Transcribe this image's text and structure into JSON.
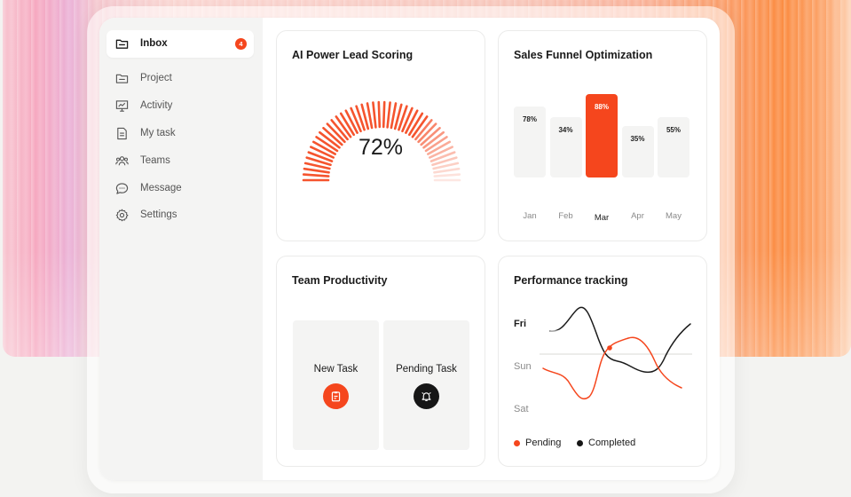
{
  "sidebar": {
    "items": [
      {
        "label": "Inbox",
        "icon": "folder-icon",
        "active": true,
        "badge": "4"
      },
      {
        "label": "Project",
        "icon": "folder-icon"
      },
      {
        "label": "Activity",
        "icon": "presentation-chart-icon"
      },
      {
        "label": "My task",
        "icon": "document-icon"
      },
      {
        "label": "Teams",
        "icon": "users-icon"
      },
      {
        "label": "Message",
        "icon": "chat-bubble-icon"
      },
      {
        "label": "Settings",
        "icon": "gear-icon"
      }
    ]
  },
  "lead_scoring": {
    "title": "AI Power Lead Scoring",
    "value_label": "72%",
    "value": 0.72
  },
  "sales_funnel": {
    "title": "Sales Funnel Optimization",
    "chart_data": {
      "type": "bar",
      "categories": [
        "Jan",
        "Feb",
        "Mar",
        "Apr",
        "May"
      ],
      "value_labels": [
        "78%",
        "34%",
        "88%",
        "35%",
        "55%"
      ],
      "highlight": "Mar",
      "highlight_color": "#f5461d"
    }
  },
  "team_productivity": {
    "title": "Team Productivity",
    "tasks": [
      {
        "label": "New Task",
        "icon": "clipboard-icon",
        "color": "#f5461d"
      },
      {
        "label": "Pending Task",
        "icon": "bell-icon",
        "color": "#161616"
      }
    ]
  },
  "performance": {
    "title": "Performance tracking",
    "chart_data": {
      "type": "line",
      "y_categories": [
        "Fri",
        "Sun",
        "Sat"
      ],
      "series": [
        {
          "name": "Pending",
          "color": "#f5461d"
        },
        {
          "name": "Completed",
          "color": "#161616"
        }
      ]
    }
  },
  "colors": {
    "accent": "#f5461d",
    "dark": "#161616"
  }
}
